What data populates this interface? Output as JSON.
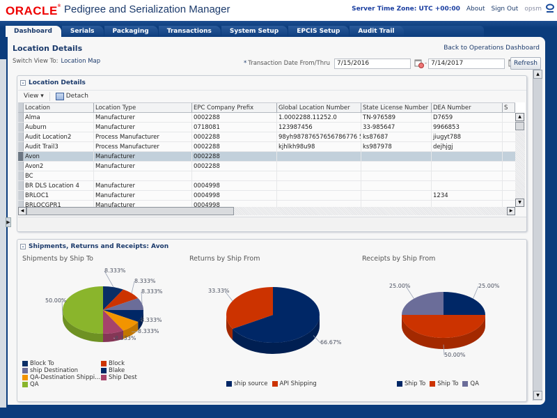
{
  "header": {
    "logo": "ORACLE",
    "app_title": "Pedigree and Serialization Manager",
    "server_tz": "Server Time Zone: UTC +00:00",
    "about": "About",
    "sign_out": "Sign Out",
    "user": "opsm"
  },
  "tabs": [
    {
      "label": "Dashboard",
      "active": true
    },
    {
      "label": "Serials"
    },
    {
      "label": "Packaging"
    },
    {
      "label": "Transactions"
    },
    {
      "label": "System Setup"
    },
    {
      "label": "EPCIS Setup"
    },
    {
      "label": "Audit Trail"
    }
  ],
  "page": {
    "title": "Location Details",
    "back_link": "Back to Operations Dashboard",
    "switch_label": "Switch View To:",
    "switch_link": "Location Map",
    "date_label": "Transaction Date From/Thru",
    "required_mark": "*",
    "date_from": "7/15/2016",
    "date_thru": "7/14/2017",
    "date_sep": "-",
    "refresh": "Refresh"
  },
  "location_panel": {
    "title": "Location Details",
    "view_menu": "View",
    "detach": "Detach",
    "columns": [
      "Location",
      "Location Type",
      "EPC Company Prefix",
      "Global Location Number",
      "State License Number",
      "DEA Number",
      "S"
    ],
    "rows": [
      [
        "Alma",
        "Manufacturer",
        "0002288",
        "1.0002288.11252.0",
        "TN-976589",
        "D7659",
        ""
      ],
      [
        "Auburn",
        "Manufacturer",
        "0718081",
        "123987456",
        "33-985647",
        "9966853",
        ""
      ],
      [
        "Audit Location2",
        "Process Manufacturer",
        "0002288",
        "98yh98787657656786776 5",
        "ks87687",
        "jiugyt788",
        ""
      ],
      [
        "Audit Trail3",
        "Process Manufacturer",
        "0002288",
        "kjhlkh98u98",
        "ks987978",
        "dejhjgj",
        ""
      ],
      [
        "Avon",
        "Manufacturer",
        "0002288",
        "",
        "",
        "",
        ""
      ],
      [
        "Avon2",
        "Manufacturer",
        "0002288",
        "",
        "",
        "",
        ""
      ],
      [
        "BC",
        "",
        "",
        "",
        "",
        "",
        ""
      ],
      [
        "BR DLS Location 4",
        "Manufacturer",
        "0004998",
        "",
        "",
        "",
        ""
      ],
      [
        "BRLOC1",
        "Manufacturer",
        "0004998",
        "",
        "",
        "1234",
        ""
      ],
      [
        "BRLOCGPR1",
        "Manufacturer",
        "0004998",
        "",
        "",
        "",
        ""
      ]
    ],
    "selected_row": 4
  },
  "shipments_panel": {
    "title": "Shipments, Returns and Receipts: Avon"
  },
  "chart_data": [
    {
      "type": "pie",
      "title": "Shipments by Ship To",
      "categories": [
        "Block To",
        "Block",
        "ship Destination",
        "Blake",
        "QA-Destination Shippi...",
        "Ship Dest",
        "QA"
      ],
      "values": [
        8.333,
        8.333,
        8.333,
        8.333,
        8.333,
        8.333,
        50.0
      ],
      "labels": [
        "8.333%",
        "8.333%",
        "8.333%",
        "8.333%",
        "8.333%",
        "8.333%",
        "50.00%"
      ],
      "colors": [
        "#0a2e66",
        "#cc3300",
        "#6b6d99",
        "#002766",
        "#f29400",
        "#a6436b",
        "#8ab52c"
      ],
      "legend": "bottom"
    },
    {
      "type": "pie",
      "title": "Returns by Ship From",
      "categories": [
        "ship source",
        "API Shipping"
      ],
      "values": [
        66.67,
        33.33
      ],
      "labels": [
        "66.67%",
        "33.33%"
      ],
      "colors": [
        "#002766",
        "#cc3300"
      ],
      "legend": "bottom"
    },
    {
      "type": "pie",
      "title": "Receipts by Ship From",
      "categories": [
        "Ship To",
        "Ship To",
        "QA"
      ],
      "values": [
        25.0,
        50.0,
        25.0
      ],
      "labels": [
        "25.00%",
        "50.00%",
        "25.00%"
      ],
      "colors": [
        "#002766",
        "#cc3300",
        "#6b6d99"
      ],
      "legend": "bottom"
    }
  ]
}
